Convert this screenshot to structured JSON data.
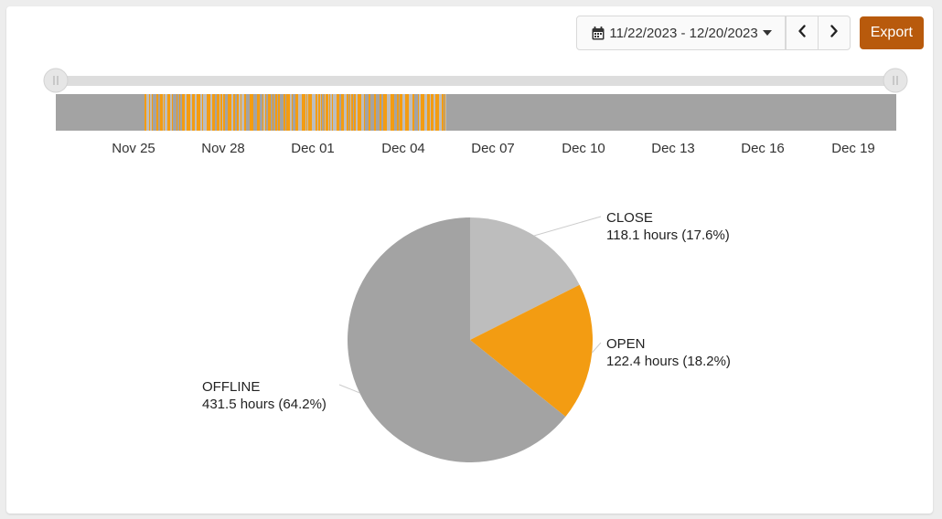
{
  "toolbar": {
    "date_range": "11/22/2023 - 12/20/2023",
    "calendar_icon": "calendar-icon",
    "caret_icon": "caret-down-icon",
    "prev_icon": "chevron-left-icon",
    "next_icon": "chevron-right-icon",
    "export_label": "Export",
    "export_color": "#b85a0c"
  },
  "timeline": {
    "ticks": [
      "Nov 25",
      "Nov 28",
      "Dec 01",
      "Dec 04",
      "Dec 07",
      "Dec 10",
      "Dec 13",
      "Dec 16",
      "Dec 19"
    ],
    "colors": {
      "offline": "#a3a3a3",
      "open": "#f39c12",
      "close": "#bdbdbd",
      "track": "#dddddd",
      "handle": "#e6e6e6"
    }
  },
  "chart_data": {
    "type": "pie",
    "slices": [
      {
        "label": "CLOSE",
        "value": 118.1,
        "percent": 17.6,
        "detail": "118.1 hours (17.6%)",
        "color": "#bdbdbd"
      },
      {
        "label": "OPEN",
        "value": 122.4,
        "percent": 18.2,
        "detail": "122.4 hours (18.2%)",
        "color": "#f39c12"
      },
      {
        "label": "OFFLINE",
        "value": 431.5,
        "percent": 64.2,
        "detail": "431.5 hours (64.2%)",
        "color": "#a3a3a3"
      }
    ]
  }
}
